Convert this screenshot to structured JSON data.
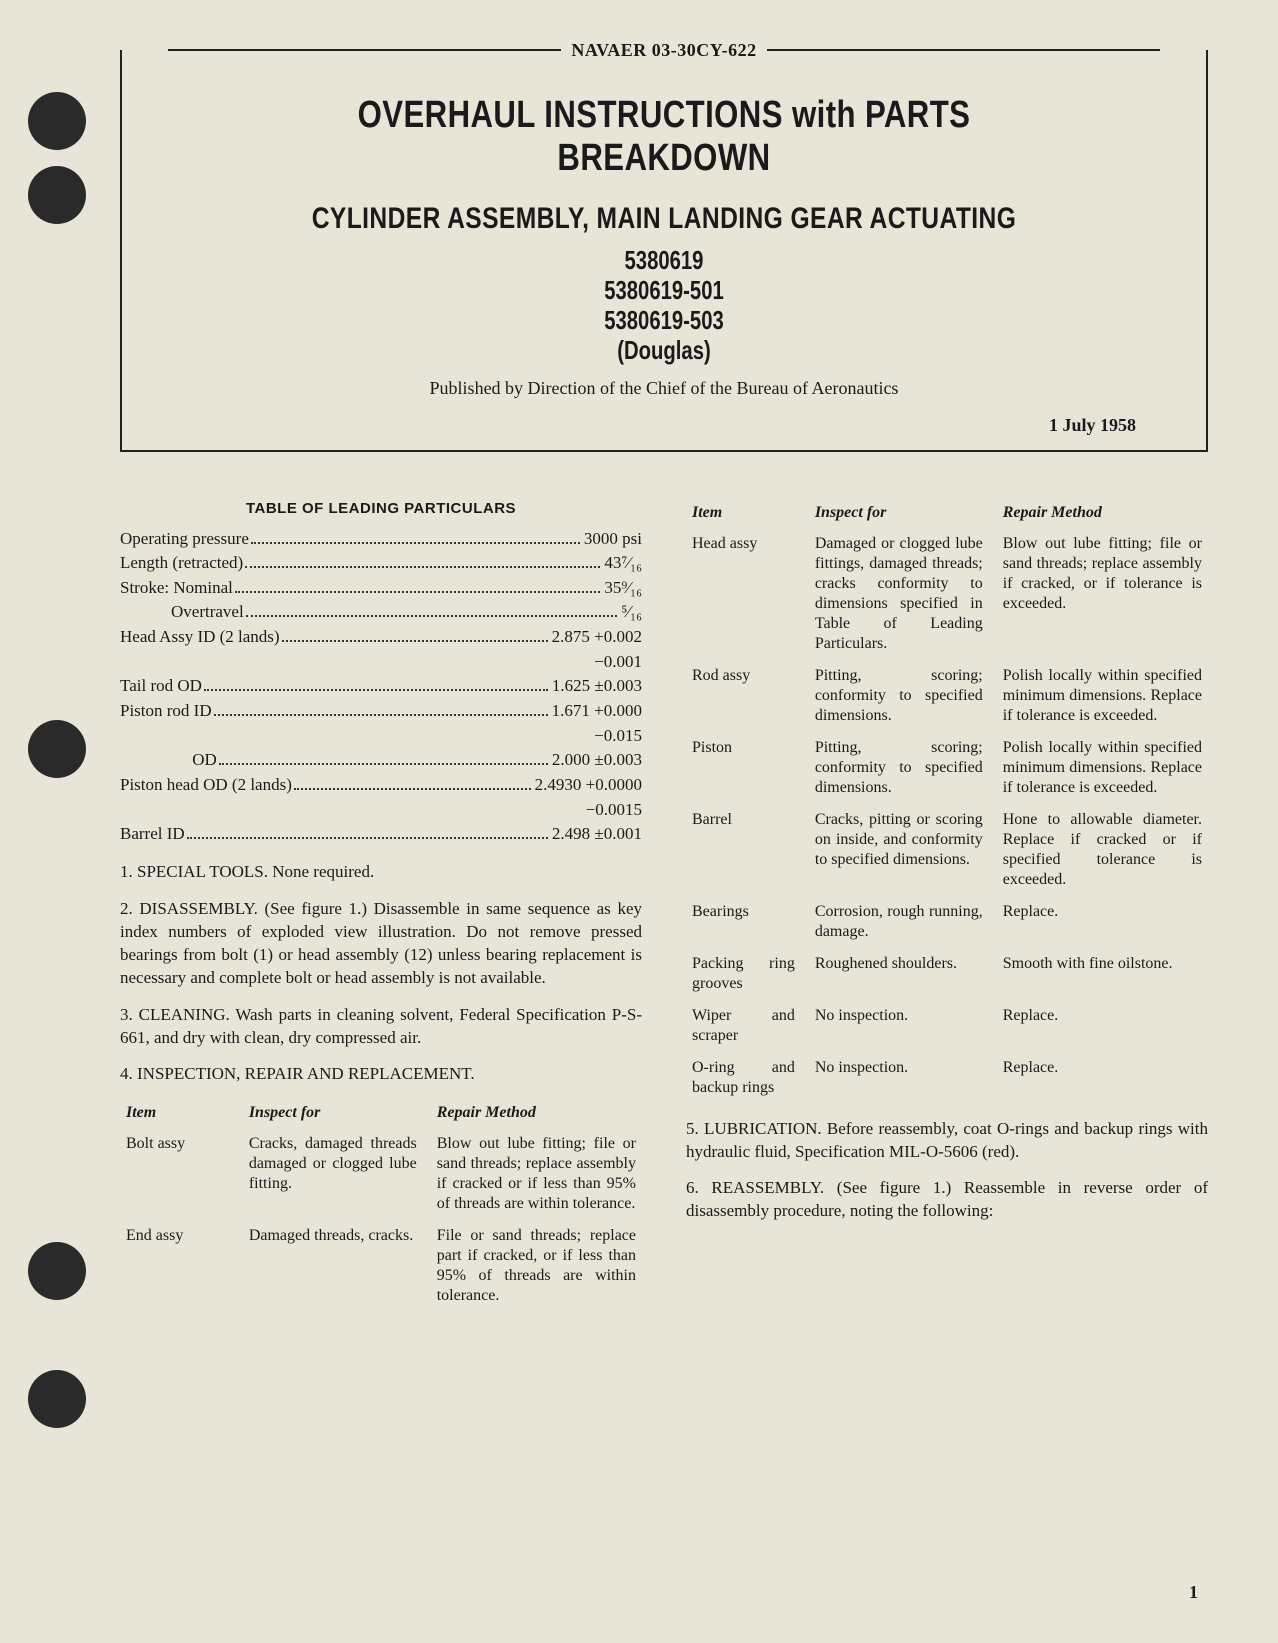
{
  "punch_holes": [
    92,
    166,
    720,
    1242,
    1370
  ],
  "doc_id": "NAVAER 03-30CY-622",
  "title_main": "OVERHAUL INSTRUCTIONS with PARTS BREAKDOWN",
  "title_sub": "CYLINDER ASSEMBLY, MAIN LANDING GEAR ACTUATING",
  "part_numbers": [
    "5380619",
    "5380619-501",
    "5380619-503",
    "(Douglas)"
  ],
  "publisher": "Published by Direction of the Chief of the Bureau of Aeronautics",
  "pub_date": "1 July 1958",
  "leading_heading": "TABLE OF LEADING PARTICULARS",
  "particulars": [
    {
      "label": "Operating pressure",
      "value": "3000 psi"
    },
    {
      "label": "Length (retracted)",
      "value": "43⁷⁄₁₆"
    },
    {
      "label": "Stroke: Nominal",
      "value": "35⁹⁄₁₆"
    },
    {
      "label": "            Overtravel",
      "value": "⁵⁄₁₆"
    },
    {
      "label": "Head Assy ID (2 lands)",
      "value": "2.875 +0.002"
    },
    {
      "cont": true,
      "value": "−0.001"
    },
    {
      "label": "Tail rod OD",
      "value": "1.625 ±0.003"
    },
    {
      "label": "Piston rod ID",
      "value": "1.671 +0.000"
    },
    {
      "cont": true,
      "value": "−0.015"
    },
    {
      "label": "                 OD",
      "value": "2.000 ±0.003"
    },
    {
      "label": "Piston head OD (2 lands)",
      "value": "2.4930 +0.0000"
    },
    {
      "cont": true,
      "value": "−0.0015"
    },
    {
      "label": "Barrel ID",
      "value": "2.498 ±0.001"
    }
  ],
  "paragraphs_left": [
    "1. SPECIAL TOOLS. None required.",
    "2. DISASSEMBLY. (See figure 1.) Disassemble in same sequence as key index numbers of exploded view illustration. Do not remove pressed bearings from bolt (1) or head assembly (12) unless bearing replacement is necessary and complete bolt or head assembly is not available.",
    "3. CLEANING. Wash parts in cleaning solvent, Federal Specification P-S-661, and dry with clean, dry compressed air.",
    "4. INSPECTION, REPAIR AND REPLACEMENT."
  ],
  "irr_headers": {
    "item": "Item",
    "inspect": "Inspect for",
    "repair": "Repair Method"
  },
  "irr_left": [
    {
      "item": "Bolt assy",
      "inspect": "Cracks, damaged threads damaged or clogged lube fitting.",
      "repair": "Blow out lube fitting; file or sand threads; replace assembly if cracked or if less than 95% of threads are within tolerance."
    },
    {
      "item": "End assy",
      "inspect": "Damaged threads, cracks.",
      "repair": "File or sand threads; replace part if cracked, or if less than 95% of threads are within tolerance."
    }
  ],
  "irr_right": [
    {
      "item": "Head assy",
      "inspect": "Damaged or clogged lube fittings, damaged threads; cracks conformity to dimensions specified in Table of Leading Particulars.",
      "repair": "Blow out lube fitting; file or sand threads; replace assembly if cracked, or if tolerance is exceeded."
    },
    {
      "item": "Rod assy",
      "inspect": "Pitting, scoring; conformity to specified dimensions.",
      "repair": "Polish locally within specified minimum dimensions. Replace if tolerance is exceeded."
    },
    {
      "item": "Piston",
      "inspect": "Pitting, scoring; conformity to specified dimensions.",
      "repair": "Polish locally within specified minimum dimensions. Replace if tolerance is exceeded."
    },
    {
      "item": "Barrel",
      "inspect": "Cracks, pitting or scoring on inside, and conformity to specified dimensions.",
      "repair": "Hone to allowable diameter. Replace if cracked or if specified tolerance is exceeded."
    },
    {
      "item": "Bearings",
      "inspect": "Corrosion, rough running, damage.",
      "repair": "Replace."
    },
    {
      "item": "Packing ring grooves",
      "inspect": "Roughened shoulders.",
      "repair": "Smooth with fine oilstone."
    },
    {
      "item": "Wiper and scraper",
      "inspect": "No inspection.",
      "repair": "Replace."
    },
    {
      "item": "O-ring and backup rings",
      "inspect": "No inspection.",
      "repair": "Replace."
    }
  ],
  "paragraphs_right": [
    "5. LUBRICATION. Before reassembly, coat O-rings and backup rings with hydraulic fluid, Specification MIL-O-5606 (red).",
    "6. REASSEMBLY. (See figure 1.) Reassemble in reverse order of disassembly procedure, noting the following:"
  ],
  "page_number": "1"
}
